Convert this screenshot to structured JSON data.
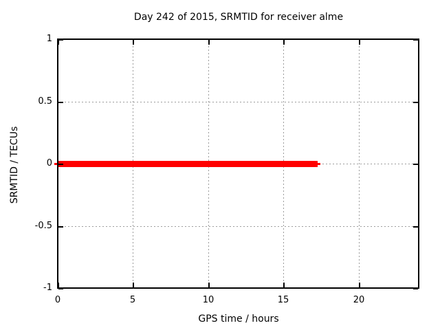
{
  "window": {
    "background_color": "#ffffff"
  },
  "chart_data": {
    "type": "line",
    "title": "Day 242 of 2015, SRMTID for receiver alme",
    "xlabel": "GPS time / hours",
    "ylabel": "SRMTID / TECUs",
    "xlim": [
      0,
      24
    ],
    "ylim": [
      -1,
      1
    ],
    "xticks": [
      0,
      5,
      10,
      15,
      20
    ],
    "yticks": [
      1,
      0.5,
      0,
      -0.5,
      -1
    ],
    "xtick_labels": [
      "0",
      "5",
      "10",
      "15",
      "20"
    ],
    "ytick_labels": [
      "1",
      "0.5",
      "0",
      "-0.5",
      "-1"
    ],
    "grid": true,
    "grid_style": "dashed",
    "legend_position": "none",
    "colors": {
      "series": "#ff0000",
      "grid": "#9c9c9c",
      "axis": "#000000",
      "text": "#000000",
      "background": "#ffffff"
    },
    "series": [
      {
        "name": "SRMTID",
        "color": "#ff0000",
        "style": "thick flat line at zero",
        "y_value": 0,
        "x_start": 0,
        "x_end": 17.28,
        "tail_x_end": 17.46,
        "points": [
          [
            0,
            0
          ],
          [
            17.28,
            0
          ]
        ]
      }
    ]
  }
}
